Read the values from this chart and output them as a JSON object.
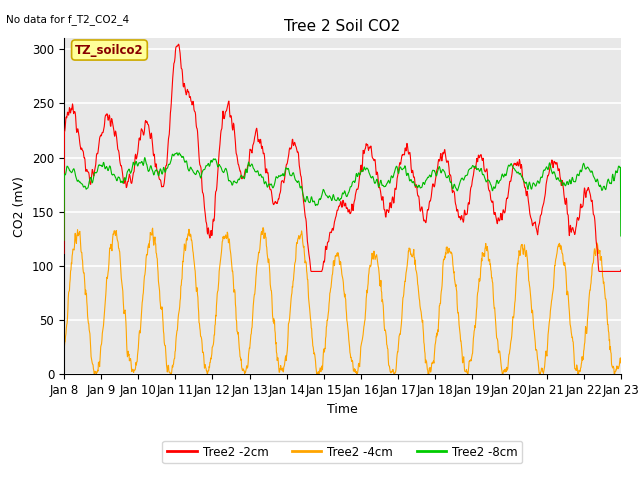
{
  "title": "Tree 2 Soil CO2",
  "no_data_text": "No data for f_T2_CO2_4",
  "xlabel": "Time",
  "ylabel": "CO2 (mV)",
  "ylim": [
    0,
    310
  ],
  "yticks": [
    0,
    50,
    100,
    150,
    200,
    250,
    300
  ],
  "xlim": [
    0,
    15
  ],
  "xtick_labels": [
    "Jan 8",
    "Jan 9",
    "Jan 10",
    "Jan 11",
    "Jan 12",
    "Jan 13",
    "Jan 14",
    "Jan 15",
    "Jan 16",
    "Jan 17",
    "Jan 18",
    "Jan 19",
    "Jan 20",
    "Jan 21",
    "Jan 22",
    "Jan 23"
  ],
  "legend_labels": [
    "Tree2 -2cm",
    "Tree2 -4cm",
    "Tree2 -8cm"
  ],
  "legend_colors": [
    "#ff0000",
    "#ffa500",
    "#00cc00"
  ],
  "line_colors": [
    "#ff0000",
    "#ffa500",
    "#00bb00"
  ],
  "annotation_text": "TZ_soilco2",
  "annotation_box_color": "#ffff99",
  "annotation_box_edge": "#ccaa00",
  "bg_color": "#e8e8e8",
  "grid_color": "#ffffff",
  "title_fontsize": 11,
  "label_fontsize": 9,
  "tick_fontsize": 8.5,
  "anno_fontsize": 8.5
}
